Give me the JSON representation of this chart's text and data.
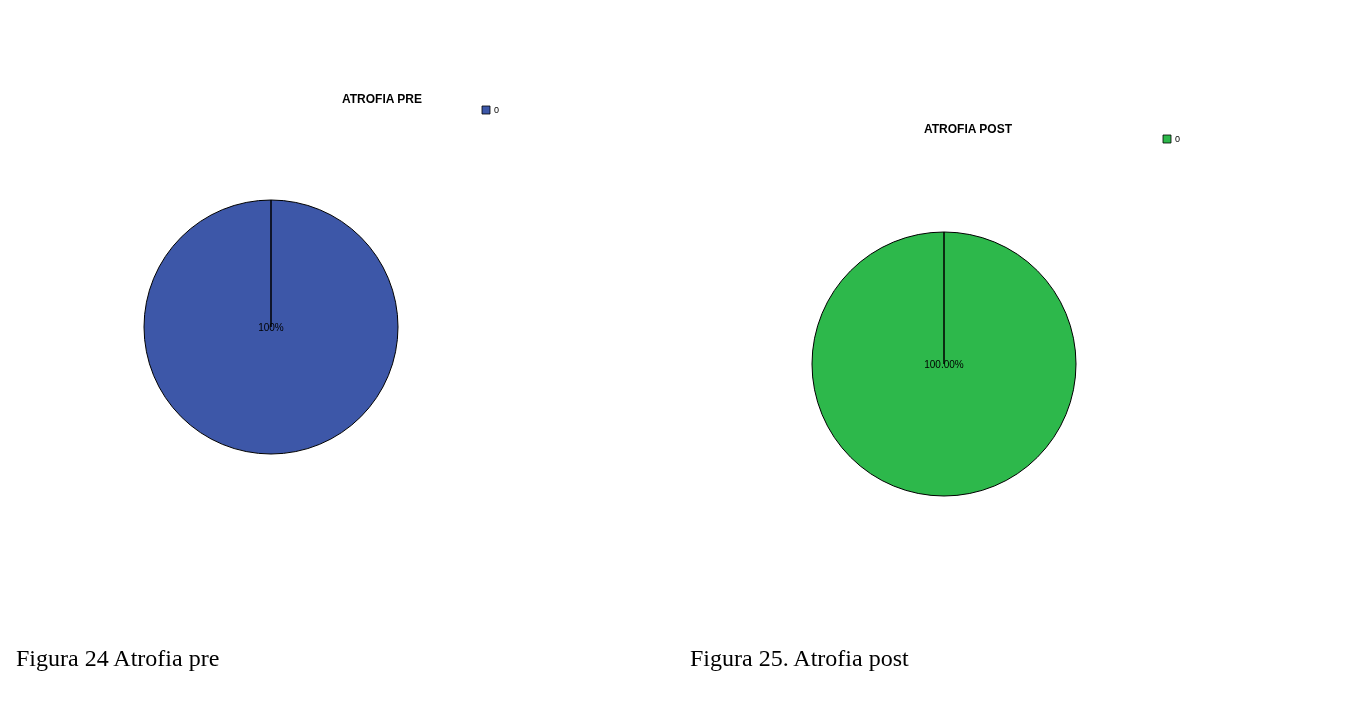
{
  "chart_data": [
    {
      "type": "pie",
      "title": "ATROFIA PRE",
      "categories": [
        "0"
      ],
      "values": [
        100
      ],
      "colors": [
        "#3d57a8"
      ],
      "value_labels": [
        "100%"
      ],
      "legend": "top right",
      "annotations": [
        "Figura 24 Atrofia pre"
      ]
    },
    {
      "type": "pie",
      "title": "ATROFIA POST",
      "categories": [
        "0"
      ],
      "values": [
        100
      ],
      "colors": [
        "#2db84b"
      ],
      "value_labels": [
        "100.00%"
      ],
      "legend": "top right",
      "annotations": [
        "Figura 25. Atrofia post"
      ]
    }
  ]
}
